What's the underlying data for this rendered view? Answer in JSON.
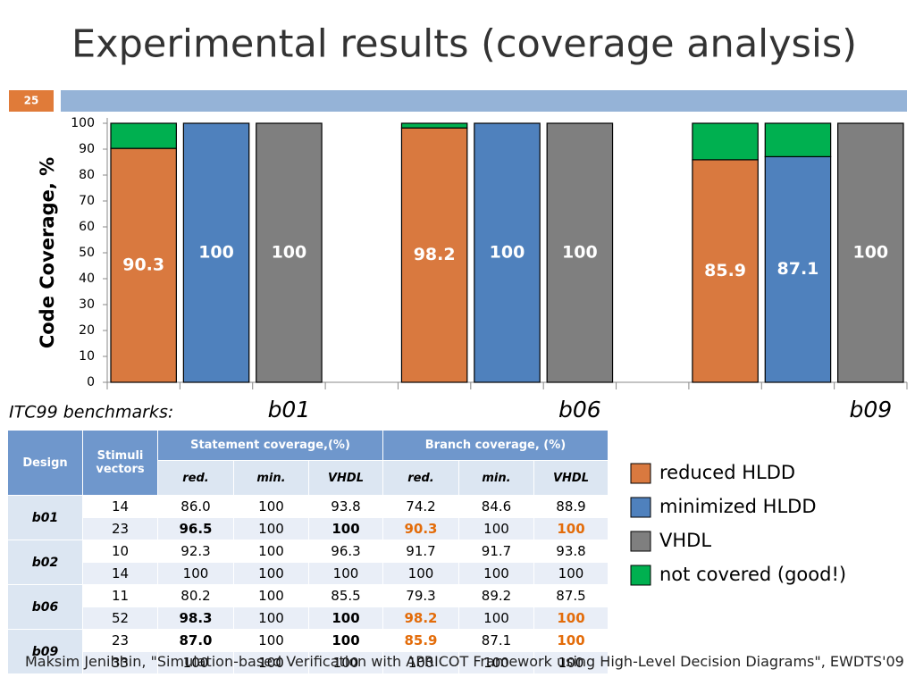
{
  "slide": {
    "title": "Experimental results (coverage analysis)",
    "number": "25",
    "footer": "Maksim Jenihhin, \"Simulation-based Verification with APRICOT Framework using High-Level Decision Diagrams\", EWDTS'09"
  },
  "chart_data": {
    "type": "stacked_bar",
    "ylabel": "Code Coverage, %",
    "xlabel": "ITC99 benchmarks:",
    "categories": [
      "b01",
      "b06",
      "b09"
    ],
    "ylim": [
      0,
      100
    ],
    "yticks": [
      0,
      10,
      20,
      30,
      40,
      50,
      60,
      70,
      80,
      90,
      100
    ],
    "grid": false,
    "legend": "right",
    "series": [
      {
        "name": "reduced HLDD",
        "color": "#d9793f",
        "values": [
          90.3,
          98.2,
          85.9
        ]
      },
      {
        "name": "minimized HLDD",
        "color": "#4f81bd",
        "values": [
          100,
          100,
          87.1
        ]
      },
      {
        "name": "VHDL",
        "color": "#7f7f7f",
        "values": [
          100,
          100,
          100
        ]
      },
      {
        "name": "not covered (good!)",
        "color": "#00b050",
        "values": [
          [
            9.7,
            0,
            0
          ],
          [
            1.8,
            0,
            0
          ],
          [
            14.1,
            12.9,
            0
          ]
        ]
      }
    ]
  },
  "table": {
    "header": [
      "Design",
      "Stimuli vectors",
      "Statement coverage,(%)",
      "Branch coverage, (%)"
    ],
    "subheader": [
      "red.",
      "min.",
      "VHDL",
      "red.",
      "min.",
      "VHDL"
    ],
    "groups": [
      {
        "design": "b01",
        "rows": [
          [
            "14",
            "86.0",
            "100",
            "93.8",
            "74.2",
            "84.6",
            "88.9"
          ],
          [
            "23",
            "96.5",
            "100",
            "100",
            "90.3",
            "100",
            "100"
          ]
        ]
      },
      {
        "design": "b02",
        "rows": [
          [
            "10",
            "92.3",
            "100",
            "96.3",
            "91.7",
            "91.7",
            "93.8"
          ],
          [
            "14",
            "100",
            "100",
            "100",
            "100",
            "100",
            "100"
          ]
        ]
      },
      {
        "design": "b06",
        "rows": [
          [
            "11",
            "80.2",
            "100",
            "85.5",
            "79.3",
            "89.2",
            "87.5"
          ],
          [
            "52",
            "98.3",
            "100",
            "100",
            "98.2",
            "100",
            "100"
          ]
        ]
      },
      {
        "design": "b09",
        "rows": [
          [
            "23",
            "87.0",
            "100",
            "100",
            "85.9",
            "87.1",
            "100"
          ],
          [
            "33",
            "100",
            "100",
            "100",
            "100",
            "100",
            "100"
          ]
        ]
      }
    ]
  }
}
